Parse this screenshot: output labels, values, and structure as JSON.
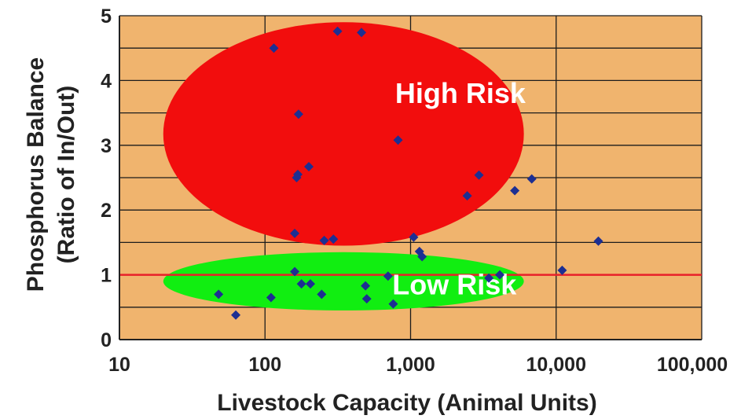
{
  "chart_data": {
    "type": "scatter",
    "xlabel": "Livestock Capacity (Animal Units)",
    "ylabel_line1": "Phosphorus Balance",
    "ylabel_line2": "(Ratio of In/Out)",
    "xscale": "log",
    "xlim": [
      10,
      100000
    ],
    "ylim": [
      0,
      5
    ],
    "grid": true,
    "legend": "none",
    "x_ticks": [
      {
        "value": 10,
        "label": "10"
      },
      {
        "value": 100,
        "label": "100"
      },
      {
        "value": 1000,
        "label": "1,000"
      },
      {
        "value": 10000,
        "label": "10,000"
      },
      {
        "value": 100000,
        "label": "100,000"
      }
    ],
    "y_ticks": [
      {
        "value": 0,
        "label": "0"
      },
      {
        "value": 1,
        "label": "1"
      },
      {
        "value": 2,
        "label": "2"
      },
      {
        "value": 3,
        "label": "3"
      },
      {
        "value": 4,
        "label": "4"
      },
      {
        "value": 5,
        "label": "5"
      }
    ],
    "reference_line": {
      "y": 1,
      "color": "#e8202a"
    },
    "zones": [
      {
        "label": "High Risk",
        "color": "#f20d0d",
        "x_range": [
          20,
          6000
        ],
        "y_range": [
          1.45,
          4.9
        ],
        "label_at": {
          "x": 2200,
          "y": 3.65
        }
      },
      {
        "label": "Low Risk",
        "color": "#11ee11",
        "x_range": [
          20,
          6000
        ],
        "y_range": [
          0.45,
          1.35
        ],
        "label_at": {
          "x": 2000,
          "y": 0.7
        }
      }
    ],
    "colors": {
      "plot_background": "#f0b46e",
      "grid": "#1c1c1c",
      "marker": "#1d2f92"
    },
    "points": [
      {
        "x": 48,
        "y": 0.7
      },
      {
        "x": 63,
        "y": 0.38
      },
      {
        "x": 110,
        "y": 0.65
      },
      {
        "x": 115,
        "y": 4.5
      },
      {
        "x": 160,
        "y": 1.05
      },
      {
        "x": 160,
        "y": 1.64
      },
      {
        "x": 165,
        "y": 2.5
      },
      {
        "x": 168,
        "y": 2.55
      },
      {
        "x": 170,
        "y": 3.48
      },
      {
        "x": 178,
        "y": 0.86
      },
      {
        "x": 200,
        "y": 2.67
      },
      {
        "x": 205,
        "y": 0.86
      },
      {
        "x": 245,
        "y": 0.7
      },
      {
        "x": 255,
        "y": 1.53
      },
      {
        "x": 295,
        "y": 1.55
      },
      {
        "x": 315,
        "y": 4.76
      },
      {
        "x": 460,
        "y": 4.74
      },
      {
        "x": 490,
        "y": 0.83
      },
      {
        "x": 500,
        "y": 0.63
      },
      {
        "x": 700,
        "y": 0.98
      },
      {
        "x": 760,
        "y": 0.55
      },
      {
        "x": 820,
        "y": 3.08
      },
      {
        "x": 1050,
        "y": 1.58
      },
      {
        "x": 1150,
        "y": 1.36
      },
      {
        "x": 1200,
        "y": 1.28
      },
      {
        "x": 2450,
        "y": 2.22
      },
      {
        "x": 2950,
        "y": 2.54
      },
      {
        "x": 3450,
        "y": 0.95
      },
      {
        "x": 4100,
        "y": 1.0
      },
      {
        "x": 5200,
        "y": 2.3
      },
      {
        "x": 6800,
        "y": 2.48
      },
      {
        "x": 11000,
        "y": 1.07
      },
      {
        "x": 19500,
        "y": 1.52
      }
    ]
  }
}
